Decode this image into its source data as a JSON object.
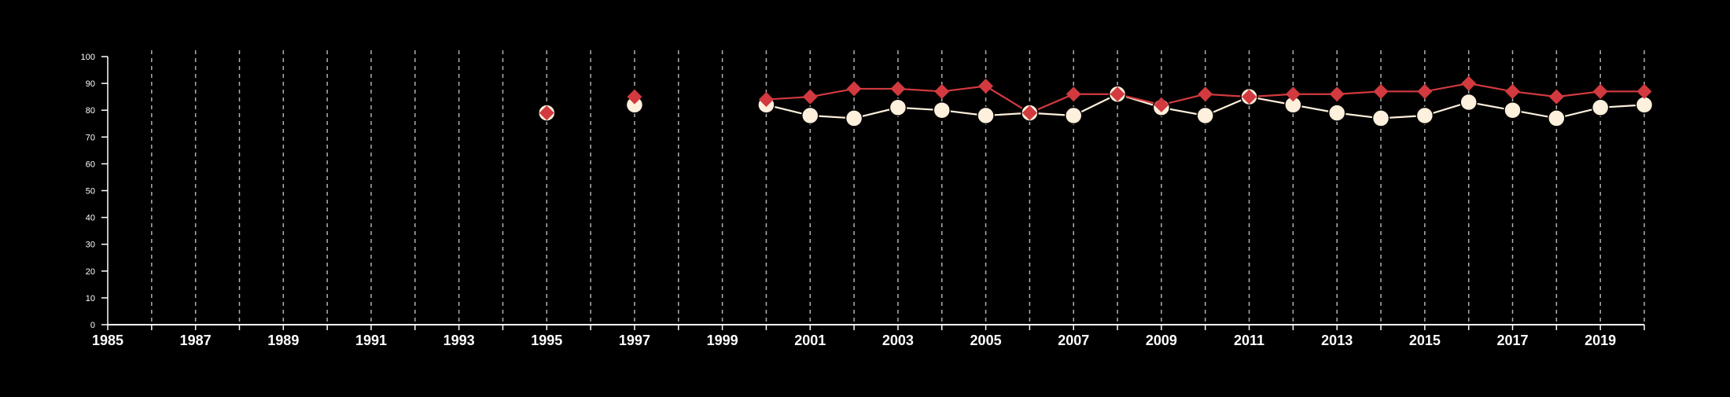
{
  "chart_data": {
    "type": "line",
    "title": "",
    "xlabel": "",
    "ylabel": "",
    "xlim": [
      1985,
      2020
    ],
    "ylim": [
      0,
      100
    ],
    "x_ticks": [
      "1985",
      "1987",
      "1989",
      "1991",
      "1993",
      "1995",
      "1997",
      "1999",
      "2001",
      "2003",
      "2005",
      "2007",
      "2009",
      "2011",
      "2013",
      "2015",
      "2017",
      "2019"
    ],
    "y_ticks": [
      "0",
      "10",
      "20",
      "30",
      "40",
      "50",
      "60",
      "70",
      "80",
      "90",
      "100"
    ],
    "grid": "vertical dashed lines at each year",
    "background": "#000000",
    "colors": {
      "series_a": "#fdf0dc",
      "series_b": "#d23a3f",
      "axis": "#ffffff",
      "grid": "#cfcfcf"
    },
    "series": [
      {
        "marker": "circle",
        "color": "#fdf0dc",
        "points": [
          {
            "x": 1995,
            "y": 79
          },
          {
            "x": 1997,
            "y": 82
          },
          {
            "x": 2000,
            "y": 82
          },
          {
            "x": 2001,
            "y": 78
          },
          {
            "x": 2002,
            "y": 77
          },
          {
            "x": 2003,
            "y": 81
          },
          {
            "x": 2004,
            "y": 80
          },
          {
            "x": 2005,
            "y": 78
          },
          {
            "x": 2006,
            "y": 79
          },
          {
            "x": 2007,
            "y": 78
          },
          {
            "x": 2008,
            "y": 86
          },
          {
            "x": 2009,
            "y": 81
          },
          {
            "x": 2010,
            "y": 78
          },
          {
            "x": 2011,
            "y": 85
          },
          {
            "x": 2012,
            "y": 82
          },
          {
            "x": 2013,
            "y": 79
          },
          {
            "x": 2014,
            "y": 77
          },
          {
            "x": 2015,
            "y": 78
          },
          {
            "x": 2016,
            "y": 83
          },
          {
            "x": 2017,
            "y": 80
          },
          {
            "x": 2018,
            "y": 77
          },
          {
            "x": 2019,
            "y": 81
          },
          {
            "x": 2020,
            "y": 82
          }
        ]
      },
      {
        "marker": "diamond",
        "color": "#d23a3f",
        "points": [
          {
            "x": 1995,
            "y": 79
          },
          {
            "x": 1997,
            "y": 85
          },
          {
            "x": 2000,
            "y": 84
          },
          {
            "x": 2001,
            "y": 85
          },
          {
            "x": 2002,
            "y": 88
          },
          {
            "x": 2003,
            "y": 88
          },
          {
            "x": 2004,
            "y": 87
          },
          {
            "x": 2005,
            "y": 89
          },
          {
            "x": 2006,
            "y": 79
          },
          {
            "x": 2007,
            "y": 86
          },
          {
            "x": 2008,
            "y": 86
          },
          {
            "x": 2009,
            "y": 82
          },
          {
            "x": 2010,
            "y": 86
          },
          {
            "x": 2011,
            "y": 85
          },
          {
            "x": 2012,
            "y": 86
          },
          {
            "x": 2013,
            "y": 86
          },
          {
            "x": 2014,
            "y": 87
          },
          {
            "x": 2015,
            "y": 87
          },
          {
            "x": 2016,
            "y": 90
          },
          {
            "x": 2017,
            "y": 87
          },
          {
            "x": 2018,
            "y": 85
          },
          {
            "x": 2019,
            "y": 87
          },
          {
            "x": 2020,
            "y": 87
          }
        ]
      }
    ]
  }
}
